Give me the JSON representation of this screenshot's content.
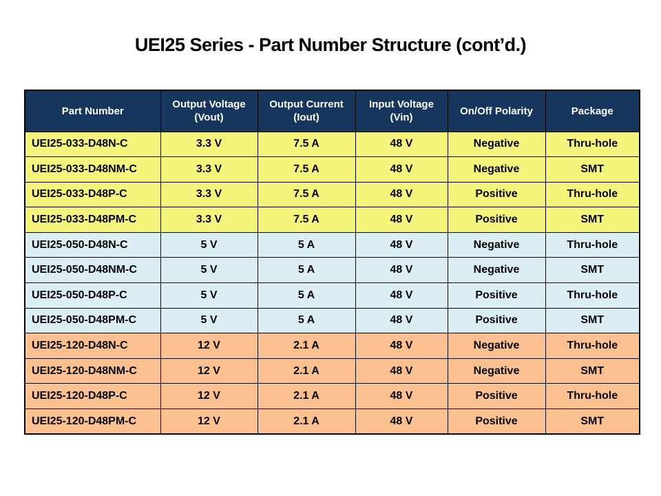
{
  "title": "UEI25 Series - Part Number Structure (cont’d.)",
  "colors": {
    "header_bg": "#17365D",
    "header_text": "#FFFFFF",
    "grid": "#000000",
    "group_yellow": "#F5F57D",
    "group_blue": "#DAEEF3",
    "group_orange": "#FAC090"
  },
  "table": {
    "header": [
      "Part Number",
      "Output Voltage\n(Vout)",
      "Output Current\n(Iout)",
      "Input Voltage\n(Vin)",
      "On/Off Polarity",
      "Package"
    ],
    "groups": [
      {
        "name": "3.3V-models",
        "color": "#F5F57D"
      },
      {
        "name": "5V-models",
        "color": "#DAEEF3"
      },
      {
        "name": "12V-models",
        "color": "#FAC090"
      }
    ],
    "rows": [
      {
        "group": 0,
        "cells": [
          "UEI25-033-D48N-C",
          "3.3 V",
          "7.5 A",
          "48 V",
          "Negative",
          "Thru-hole"
        ]
      },
      {
        "group": 0,
        "cells": [
          "UEI25-033-D48NM-C",
          "3.3 V",
          "7.5 A",
          "48 V",
          "Negative",
          "SMT"
        ]
      },
      {
        "group": 0,
        "cells": [
          "UEI25-033-D48P-C",
          "3.3 V",
          "7.5 A",
          "48 V",
          "Positive",
          "Thru-hole"
        ]
      },
      {
        "group": 0,
        "cells": [
          "UEI25-033-D48PM-C",
          "3.3 V",
          "7.5 A",
          "48 V",
          "Positive",
          "SMT"
        ]
      },
      {
        "group": 1,
        "cells": [
          "UEI25-050-D48N-C",
          "5 V",
          "5 A",
          "48 V",
          "Negative",
          "Thru-hole"
        ]
      },
      {
        "group": 1,
        "cells": [
          "UEI25-050-D48NM-C",
          "5 V",
          "5 A",
          "48 V",
          "Negative",
          "SMT"
        ]
      },
      {
        "group": 1,
        "cells": [
          "UEI25-050-D48P-C",
          "5 V",
          "5 A",
          "48 V",
          "Positive",
          "Thru-hole"
        ]
      },
      {
        "group": 1,
        "cells": [
          "UEI25-050-D48PM-C",
          "5 V",
          "5 A",
          "48 V",
          "Positive",
          "SMT"
        ]
      },
      {
        "group": 2,
        "cells": [
          "UEI25-120-D48N-C",
          "12 V",
          "2.1 A",
          "48 V",
          "Negative",
          "Thru-hole"
        ]
      },
      {
        "group": 2,
        "cells": [
          "UEI25-120-D48NM-C",
          "12 V",
          "2.1 A",
          "48 V",
          "Negative",
          "SMT"
        ]
      },
      {
        "group": 2,
        "cells": [
          "UEI25-120-D48P-C",
          "12 V",
          "2.1 A",
          "48 V",
          "Positive",
          "Thru-hole"
        ]
      },
      {
        "group": 2,
        "cells": [
          "UEI25-120-D48PM-C",
          "12 V",
          "2.1 A",
          "48 V",
          "Positive",
          "SMT"
        ]
      }
    ]
  }
}
